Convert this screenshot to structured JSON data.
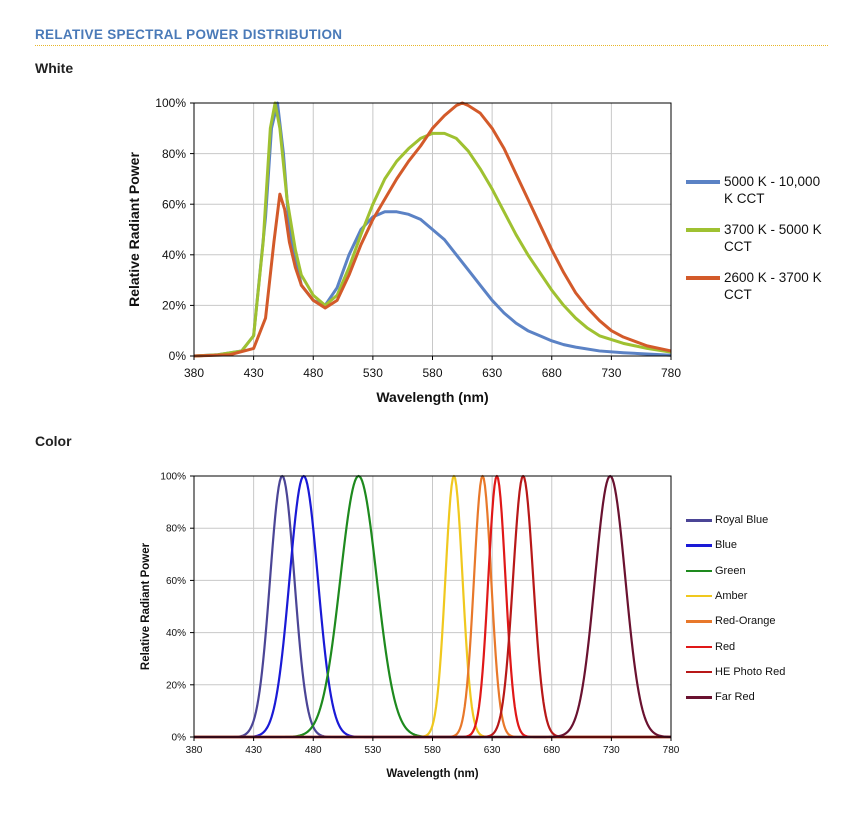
{
  "header": {
    "section_title": "RELATIVE SPECTRAL POWER DISTRIBUTION",
    "white_title": "White",
    "color_title": "Color"
  },
  "chart_data": [
    {
      "type": "line",
      "title": "White",
      "xlabel": "Wavelength (nm)",
      "ylabel": "Relative Radiant Power",
      "xlim": [
        380,
        780
      ],
      "ylim": [
        0,
        100
      ],
      "xticks": [
        380,
        430,
        480,
        530,
        580,
        630,
        680,
        730,
        780
      ],
      "yticks": [
        0,
        20,
        40,
        60,
        80,
        100
      ],
      "ytick_labels": [
        "0%",
        "20%",
        "40%",
        "60%",
        "80%",
        "100%"
      ],
      "grid": true,
      "legend": "right",
      "series": [
        {
          "name": "5000 K - 10,000 K CCT",
          "color": "#5b82c5",
          "points": [
            [
              380,
              0
            ],
            [
              400,
              0.5
            ],
            [
              420,
              2
            ],
            [
              430,
              8
            ],
            [
              440,
              55
            ],
            [
              445,
              90
            ],
            [
              450,
              100
            ],
            [
              455,
              80
            ],
            [
              460,
              50
            ],
            [
              470,
              28
            ],
            [
              480,
              22
            ],
            [
              490,
              20
            ],
            [
              500,
              27
            ],
            [
              510,
              40
            ],
            [
              520,
              50
            ],
            [
              530,
              55
            ],
            [
              540,
              57
            ],
            [
              550,
              57
            ],
            [
              560,
              56
            ],
            [
              570,
              54
            ],
            [
              580,
              50
            ],
            [
              590,
              46
            ],
            [
              600,
              40
            ],
            [
              610,
              34
            ],
            [
              620,
              28
            ],
            [
              630,
              22
            ],
            [
              640,
              17
            ],
            [
              650,
              13
            ],
            [
              660,
              10
            ],
            [
              670,
              8
            ],
            [
              680,
              6
            ],
            [
              690,
              4.5
            ],
            [
              700,
              3.5
            ],
            [
              720,
              2
            ],
            [
              740,
              1.3
            ],
            [
              760,
              0.8
            ],
            [
              780,
              0.3
            ]
          ]
        },
        {
          "name": "3700 K - 5000 K CCT",
          "color": "#9fc131",
          "points": [
            [
              380,
              0
            ],
            [
              400,
              0.5
            ],
            [
              420,
              2
            ],
            [
              430,
              8
            ],
            [
              438,
              45
            ],
            [
              444,
              90
            ],
            [
              448,
              100
            ],
            [
              452,
              90
            ],
            [
              458,
              62
            ],
            [
              465,
              42
            ],
            [
              470,
              32
            ],
            [
              480,
              24
            ],
            [
              490,
              20
            ],
            [
              500,
              24
            ],
            [
              510,
              35
            ],
            [
              520,
              48
            ],
            [
              530,
              60
            ],
            [
              540,
              70
            ],
            [
              550,
              77
            ],
            [
              560,
              82
            ],
            [
              570,
              86
            ],
            [
              580,
              88
            ],
            [
              590,
              88
            ],
            [
              600,
              86
            ],
            [
              610,
              81
            ],
            [
              620,
              74
            ],
            [
              630,
              66
            ],
            [
              640,
              57
            ],
            [
              650,
              48
            ],
            [
              660,
              40
            ],
            [
              670,
              33
            ],
            [
              680,
              26
            ],
            [
              690,
              20
            ],
            [
              700,
              15
            ],
            [
              710,
              11
            ],
            [
              720,
              8
            ],
            [
              740,
              5
            ],
            [
              760,
              3
            ],
            [
              780,
              1.5
            ]
          ]
        },
        {
          "name": "2600 K - 3700 K CCT",
          "color": "#d35a2a",
          "points": [
            [
              380,
              0
            ],
            [
              410,
              0.5
            ],
            [
              430,
              3
            ],
            [
              440,
              15
            ],
            [
              447,
              45
            ],
            [
              452,
              64
            ],
            [
              456,
              58
            ],
            [
              460,
              45
            ],
            [
              465,
              35
            ],
            [
              470,
              28
            ],
            [
              480,
              22
            ],
            [
              490,
              19
            ],
            [
              500,
              22
            ],
            [
              510,
              32
            ],
            [
              520,
              44
            ],
            [
              530,
              54
            ],
            [
              540,
              62
            ],
            [
              550,
              70
            ],
            [
              560,
              77
            ],
            [
              570,
              83
            ],
            [
              580,
              90
            ],
            [
              590,
              95
            ],
            [
              600,
              99
            ],
            [
              605,
              100
            ],
            [
              610,
              99
            ],
            [
              620,
              96
            ],
            [
              630,
              90
            ],
            [
              640,
              82
            ],
            [
              650,
              72
            ],
            [
              660,
              62
            ],
            [
              670,
              52
            ],
            [
              680,
              42
            ],
            [
              690,
              33
            ],
            [
              700,
              25
            ],
            [
              710,
              19
            ],
            [
              720,
              14
            ],
            [
              730,
              10
            ],
            [
              740,
              7.5
            ],
            [
              760,
              4
            ],
            [
              780,
              2
            ]
          ]
        }
      ]
    },
    {
      "type": "line",
      "title": "Color",
      "xlabel": "Wavelength (nm)",
      "ylabel": "Relative Radiant Power",
      "xlim": [
        380,
        780
      ],
      "ylim": [
        0,
        100
      ],
      "xticks": [
        380,
        430,
        480,
        530,
        580,
        630,
        680,
        730,
        780
      ],
      "yticks": [
        0,
        20,
        40,
        60,
        80,
        100
      ],
      "ytick_labels": [
        "0%",
        "20%",
        "40%",
        "60%",
        "80%",
        "100%"
      ],
      "grid": true,
      "legend": "right",
      "series": [
        {
          "name": "Royal Blue",
          "color": "#4b4596",
          "peak": 454,
          "fwhm": 24
        },
        {
          "name": "Blue",
          "color": "#1a1ad6",
          "peak": 472,
          "fwhm": 28
        },
        {
          "name": "Green",
          "color": "#1e8a1e",
          "peak": 518,
          "fwhm": 36
        },
        {
          "name": "Amber",
          "color": "#f0c81e",
          "peak": 598,
          "fwhm": 17
        },
        {
          "name": "Red-Orange",
          "color": "#e8782a",
          "peak": 622,
          "fwhm": 17
        },
        {
          "name": "Red",
          "color": "#e01818",
          "peak": 634,
          "fwhm": 17
        },
        {
          "name": "HE Photo Red",
          "color": "#b81818",
          "peak": 656,
          "fwhm": 20
        },
        {
          "name": "Far Red",
          "color": "#6a1230",
          "peak": 729,
          "fwhm": 30
        }
      ]
    }
  ]
}
